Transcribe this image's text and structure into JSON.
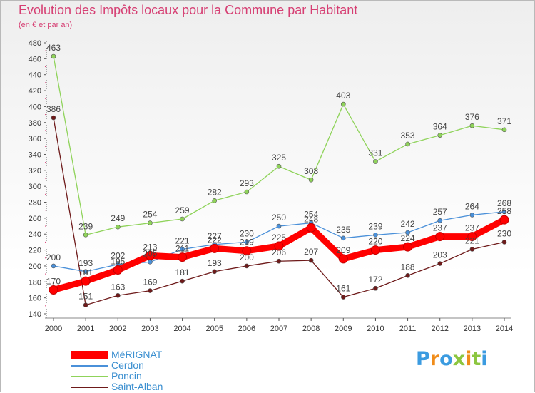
{
  "title": "Evolution des Impôts locaux pour la Commune par Habitant",
  "subtitle": "(en € et par an)",
  "chart_data": {
    "type": "line",
    "x": [
      "2000",
      "2001",
      "2002",
      "2003",
      "2004",
      "2005",
      "2006",
      "2007",
      "2008",
      "2009",
      "2010",
      "2011",
      "2012",
      "2013",
      "2014"
    ],
    "ylim": [
      140,
      480
    ],
    "yticks": [
      140,
      160,
      180,
      200,
      220,
      240,
      260,
      280,
      300,
      320,
      340,
      360,
      380,
      400,
      420,
      440,
      460,
      480
    ],
    "grid": false,
    "legend_position": "bottom-left",
    "series": [
      {
        "name": "MéRIGNAT",
        "color": "#ff0000",
        "values": [
          170,
          181,
          195,
          213,
          211,
          222,
          219,
          225,
          248,
          209,
          220,
          224,
          237,
          237,
          258
        ]
      },
      {
        "name": "Cerdon",
        "color": "#4a90d9",
        "values": [
          200,
          193,
          202,
          205,
          221,
          227,
          230,
          250,
          254,
          235,
          239,
          242,
          257,
          264,
          268
        ]
      },
      {
        "name": "Poncin",
        "color": "#8fd35a",
        "values": [
          463,
          239,
          249,
          254,
          259,
          282,
          293,
          325,
          308,
          403,
          331,
          353,
          364,
          376,
          371
        ]
      },
      {
        "name": "Saint-Alban",
        "color": "#6e1a1a",
        "values": [
          386,
          151,
          163,
          169,
          181,
          193,
          200,
          206,
          207,
          161,
          172,
          188,
          203,
          221,
          230
        ]
      }
    ]
  },
  "logo": {
    "letters": [
      "P",
      "r",
      "o",
      "x",
      "i",
      "t",
      "i"
    ],
    "colors": [
      "#3b9be0",
      "#f08c1a",
      "#3b9be0",
      "#8cc63f",
      "#f08c1a",
      "#8cc63f",
      "#3b9be0"
    ]
  }
}
